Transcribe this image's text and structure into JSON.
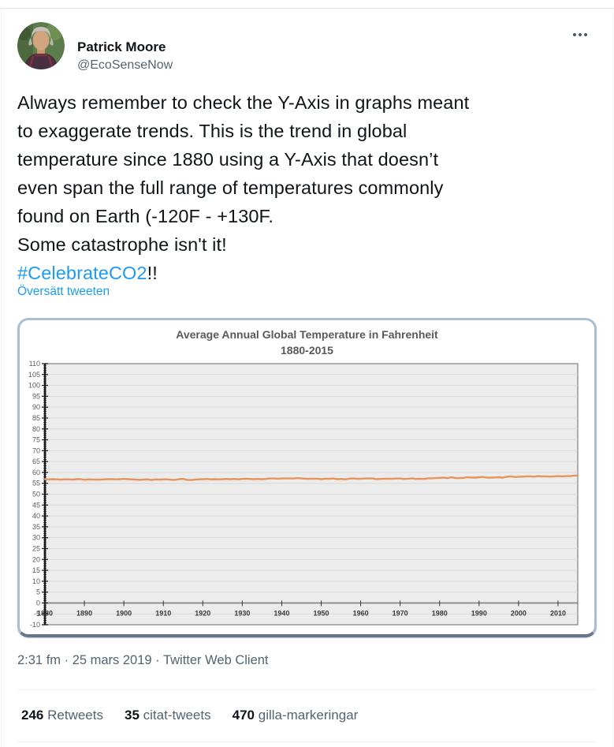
{
  "colors": {
    "accent_blue": "#1d9bf0",
    "text_primary": "#0f1419",
    "text_secondary": "#536471",
    "chart_line": "#E6945C",
    "chart_plot_bg": "#ececec",
    "chart_grid": "#d9d9d9",
    "chart_border": "#7f7f7f",
    "card_border": "#aabfd3"
  },
  "header": {
    "name": "Patrick Moore",
    "handle": "@EcoSenseNow",
    "more_icon": "more-ellipsis-icon"
  },
  "tweet": {
    "body_before": "Always remember to check the Y-Axis in graphs meant\nto exaggerate trends. This is the trend in global\ntemperature since 1880 using a Y-Axis that doesn’t\neven span the full range of temperatures commonly\nfound on Earth (-120F - +130F.\nSome catastrophe isn't it!\n",
    "hashtag": "#CelebrateCO2",
    "body_after": "!!",
    "translate_link": "Översätt tweeten"
  },
  "chart_data": {
    "type": "line",
    "title": "Average Annual Global Temperature in Fahrenheit",
    "subtitle": "1880-2015",
    "xlabel": "",
    "ylabel": "",
    "ylim": [
      -10,
      110
    ],
    "ytick_step": 5,
    "xlim": [
      1880,
      2015
    ],
    "xticks": [
      1880,
      1890,
      1900,
      1910,
      1920,
      1930,
      1940,
      1950,
      1960,
      1970,
      1980,
      1990,
      2000,
      2010
    ],
    "grid": true,
    "legend": "none",
    "line_color": "#E6945C",
    "series": [
      {
        "name": "Average annual global temperature (°F)",
        "x_start": 1880,
        "x_step": 1,
        "values": [
          56.9,
          56.8,
          56.9,
          56.8,
          56.7,
          56.8,
          56.8,
          56.7,
          56.9,
          56.9,
          56.6,
          56.8,
          56.7,
          56.7,
          56.7,
          56.8,
          56.9,
          56.9,
          56.8,
          56.9,
          57.0,
          56.9,
          56.8,
          56.7,
          56.6,
          56.7,
          56.8,
          56.5,
          56.8,
          56.7,
          56.8,
          56.8,
          56.6,
          56.6,
          56.9,
          57.0,
          56.6,
          56.5,
          56.7,
          56.8,
          56.9,
          57.0,
          56.8,
          56.9,
          56.8,
          56.9,
          57.0,
          56.9,
          57.0,
          56.8,
          57.0,
          57.1,
          57.0,
          56.9,
          57.0,
          56.9,
          57.0,
          57.2,
          57.2,
          57.1,
          57.2,
          57.3,
          57.2,
          57.2,
          57.4,
          57.2,
          57.1,
          57.1,
          57.1,
          57.1,
          56.9,
          57.1,
          57.1,
          57.2,
          56.9,
          57.0,
          56.8,
          57.1,
          57.2,
          57.1,
          57.1,
          57.2,
          57.2,
          57.2,
          56.9,
          57.0,
          57.1,
          57.1,
          57.1,
          57.2,
          57.2,
          57.0,
          57.1,
          57.3,
          57.0,
          57.1,
          57.0,
          57.3,
          57.3,
          57.4,
          57.5,
          57.6,
          57.4,
          57.8,
          57.4,
          57.4,
          57.5,
          57.8,
          57.7,
          57.6,
          57.8,
          57.9,
          57.6,
          57.6,
          57.7,
          57.8,
          57.6,
          58.0,
          58.2,
          57.9,
          58.0,
          58.1,
          58.2,
          58.2,
          58.1,
          58.3,
          58.2,
          58.2,
          58.1,
          58.2,
          58.3,
          58.2,
          58.3,
          58.3,
          58.5,
          58.6
        ]
      }
    ]
  },
  "footer": {
    "timestamp": "2:31 fm · 25 mars 2019 · Twitter Web Client",
    "stats": [
      {
        "value": "246",
        "label": "Retweets"
      },
      {
        "value": "35",
        "label": "citat-tweets"
      },
      {
        "value": "470",
        "label": "gilla-markeringar"
      }
    ]
  }
}
